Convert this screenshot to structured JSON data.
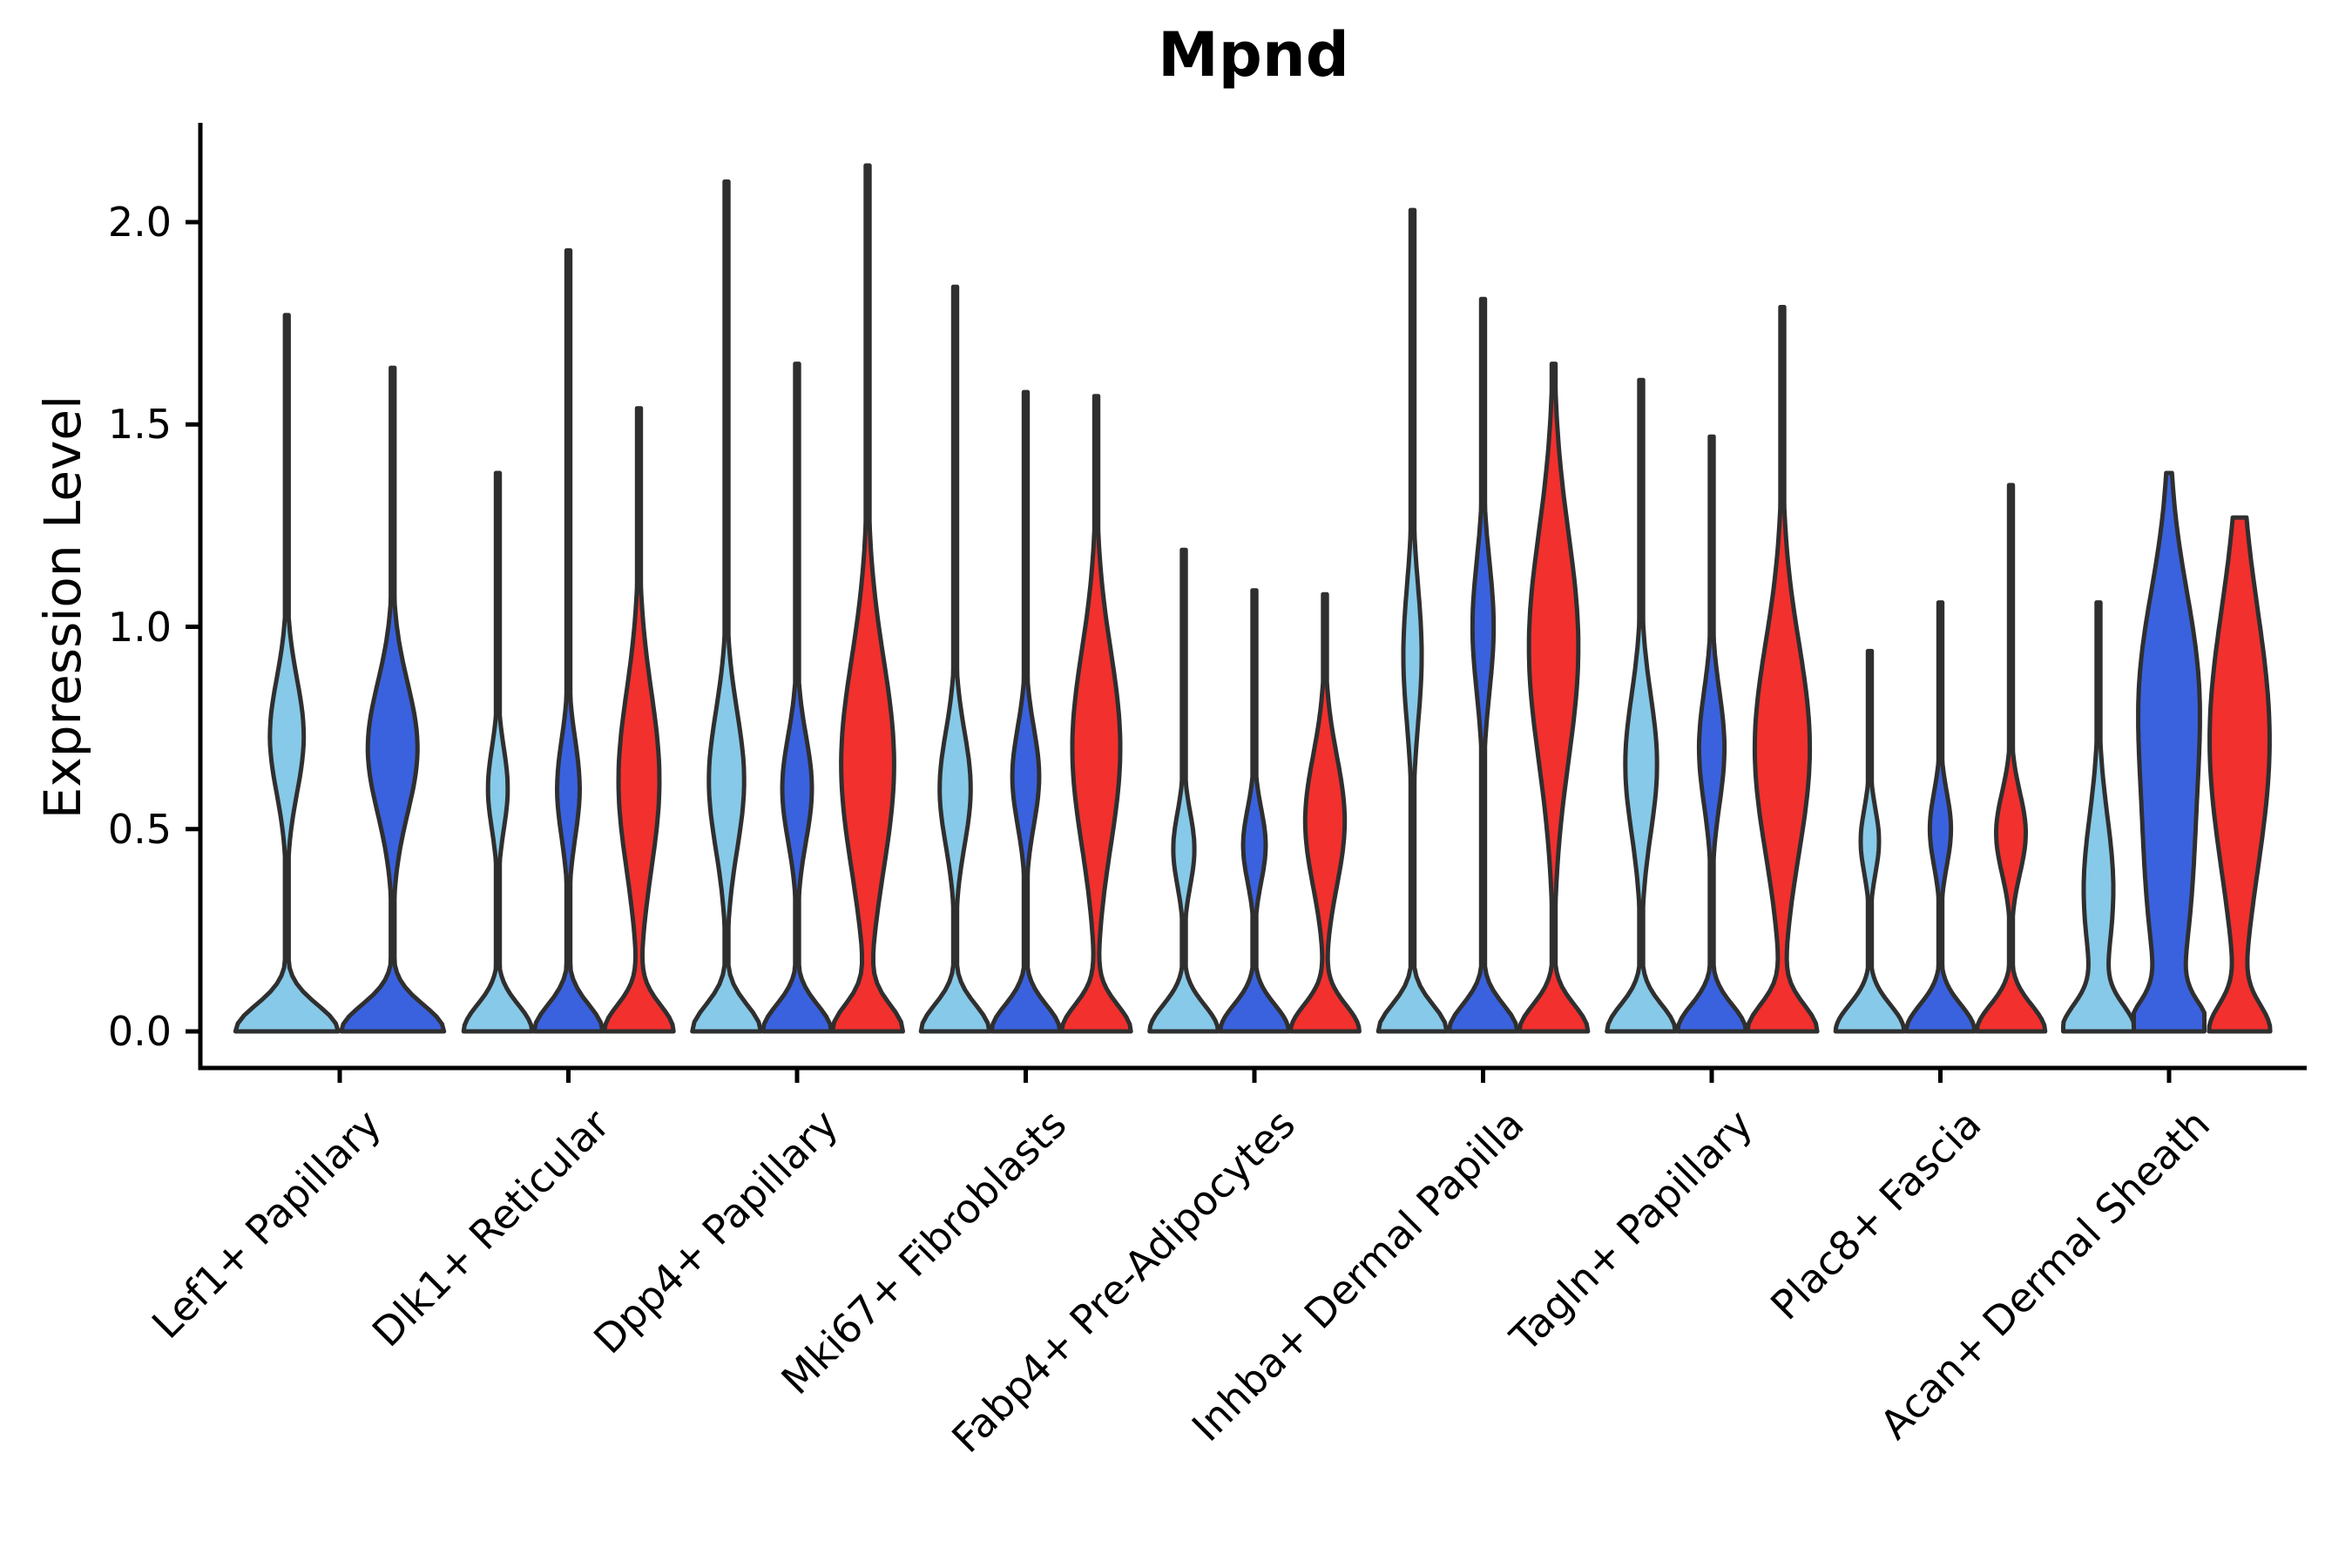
{
  "chart_data": {
    "type": "violin",
    "title": "Mpnd",
    "xlabel": "",
    "ylabel": "Expression Level",
    "ylim": [
      0,
      2.25
    ],
    "grid": false,
    "legend": "none",
    "y_ticks": [
      {
        "value": 0.0,
        "label": "0.0"
      },
      {
        "value": 0.5,
        "label": "0.5"
      },
      {
        "value": 1.0,
        "label": "1.0"
      },
      {
        "value": 1.5,
        "label": "1.5"
      },
      {
        "value": 2.0,
        "label": "2.0"
      }
    ],
    "palette": {
      "light_blue": "#87C9E8",
      "dark_blue": "#3A62DE",
      "red": "#F2302E",
      "outline": "#2F2F2F",
      "axis": "#000000"
    },
    "groups": [
      {
        "label": "Lef1+ Papillary",
        "violins": [
          {
            "color": "light_blue",
            "max": 1.77,
            "peak": 0.73,
            "sigma": 0.14,
            "amp": 0.32
          },
          {
            "color": "dark_blue",
            "max": 1.64,
            "peak": 0.7,
            "sigma": 0.16,
            "amp": 0.47
          }
        ]
      },
      {
        "label": "Dlk1+ Reticular",
        "violins": [
          {
            "color": "light_blue",
            "max": 1.38,
            "peak": 0.6,
            "sigma": 0.1,
            "amp": 0.28
          },
          {
            "color": "dark_blue",
            "max": 1.93,
            "peak": 0.6,
            "sigma": 0.12,
            "amp": 0.32
          },
          {
            "color": "red",
            "max": 1.54,
            "peak": 0.62,
            "sigma": 0.22,
            "amp": 0.58
          }
        ]
      },
      {
        "label": "Dpp4+ Papillary",
        "violins": [
          {
            "color": "light_blue",
            "max": 2.1,
            "peak": 0.62,
            "sigma": 0.17,
            "amp": 0.5
          },
          {
            "color": "dark_blue",
            "max": 1.65,
            "peak": 0.6,
            "sigma": 0.13,
            "amp": 0.42
          },
          {
            "color": "red",
            "max": 2.14,
            "peak": 0.66,
            "sigma": 0.26,
            "amp": 0.75
          }
        ]
      },
      {
        "label": "Mki67+ Fibroblasts",
        "violins": [
          {
            "color": "light_blue",
            "max": 1.84,
            "peak": 0.6,
            "sigma": 0.14,
            "amp": 0.44
          },
          {
            "color": "dark_blue",
            "max": 1.58,
            "peak": 0.63,
            "sigma": 0.12,
            "amp": 0.38
          },
          {
            "color": "red",
            "max": 1.57,
            "peak": 0.7,
            "sigma": 0.24,
            "amp": 0.68
          }
        ]
      },
      {
        "label": "Fabp4+ Pre-Adipocytes",
        "violins": [
          {
            "color": "light_blue",
            "max": 1.19,
            "peak": 0.45,
            "sigma": 0.09,
            "amp": 0.3
          },
          {
            "color": "dark_blue",
            "max": 1.09,
            "peak": 0.46,
            "sigma": 0.09,
            "amp": 0.32
          },
          {
            "color": "red",
            "max": 1.08,
            "peak": 0.52,
            "sigma": 0.16,
            "amp": 0.56
          }
        ]
      },
      {
        "label": "Inhba+ Dermal Papilla",
        "violins": [
          {
            "color": "light_blue",
            "max": 2.03,
            "peak": 0.93,
            "sigma": 0.17,
            "amp": 0.26
          },
          {
            "color": "dark_blue",
            "max": 1.81,
            "peak": 1.0,
            "sigma": 0.16,
            "amp": 0.3
          },
          {
            "color": "red",
            "max": 1.65,
            "peak": 0.95,
            "sigma": 0.28,
            "amp": 0.7
          }
        ]
      },
      {
        "label": "Tagln+ Papillary",
        "violins": [
          {
            "color": "light_blue",
            "max": 1.61,
            "peak": 0.66,
            "sigma": 0.17,
            "amp": 0.45
          },
          {
            "color": "dark_blue",
            "max": 1.47,
            "peak": 0.7,
            "sigma": 0.14,
            "amp": 0.36
          },
          {
            "color": "red",
            "max": 1.79,
            "peak": 0.7,
            "sigma": 0.26,
            "amp": 0.78
          }
        ]
      },
      {
        "label": "Plac8+ Fascia",
        "violins": [
          {
            "color": "light_blue",
            "max": 0.94,
            "peak": 0.47,
            "sigma": 0.08,
            "amp": 0.26
          },
          {
            "color": "dark_blue",
            "max": 1.06,
            "peak": 0.5,
            "sigma": 0.09,
            "amp": 0.3
          },
          {
            "color": "red",
            "max": 1.35,
            "peak": 0.49,
            "sigma": 0.1,
            "amp": 0.42
          }
        ]
      },
      {
        "label": "Acan+ Dermal Sheath",
        "violins": [
          {
            "color": "light_blue",
            "max": 1.06,
            "peak": 0.35,
            "sigma": 0.18,
            "amp": 0.42
          },
          {
            "color": "dark_blue",
            "max": 1.38,
            "peak": 0.85,
            "sigma": 0.25,
            "amp": 0.78,
            "peak2": 0.35,
            "sigma2": 0.25,
            "amp2": 0.55
          },
          {
            "color": "red",
            "max": 1.27,
            "peak": 0.72,
            "sigma": 0.32,
            "amp": 0.85,
            "base": 0.8
          }
        ]
      }
    ]
  }
}
